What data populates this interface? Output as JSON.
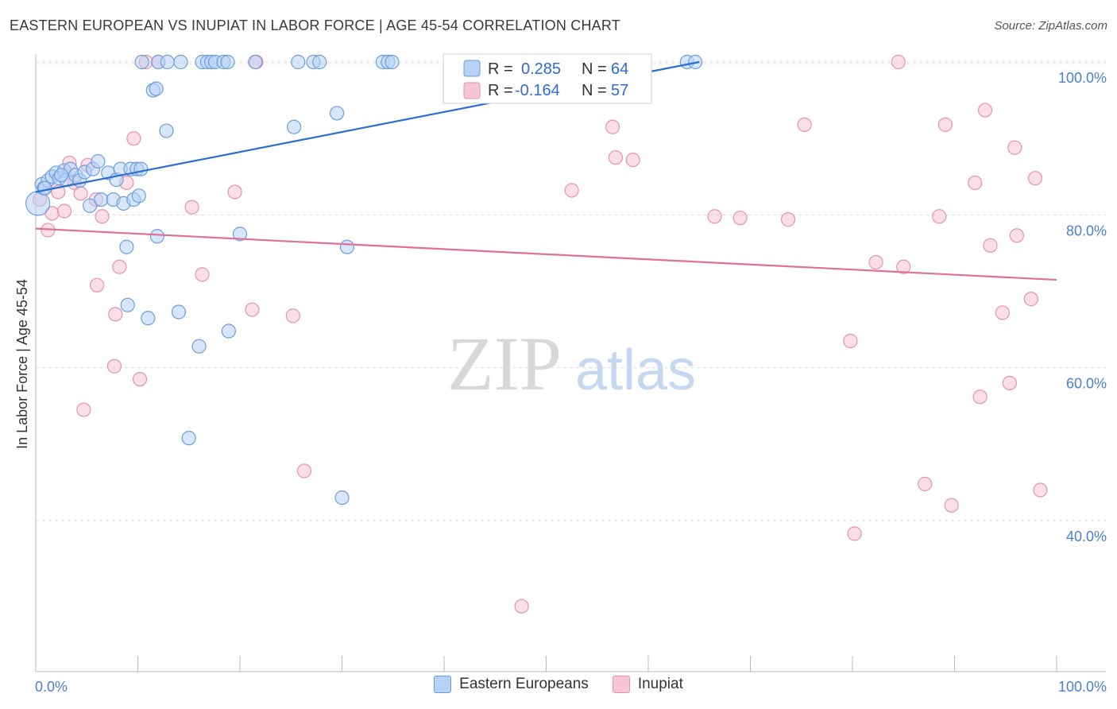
{
  "title": "EASTERN EUROPEAN VS INUPIAT IN LABOR FORCE | AGE 45-54 CORRELATION CHART",
  "source": "Source: ZipAtlas.com",
  "watermark": {
    "zip": "ZIP",
    "atlas": "atlas"
  },
  "colors": {
    "blue_fill": "#b8d2f5",
    "blue_stroke": "#6d9edc",
    "blue_line": "#2a6fd1",
    "pink_fill": "#f8c5d6",
    "pink_stroke": "#e891ad",
    "pink_line": "#e07099",
    "value_text": "#2f6bd0"
  },
  "legend": {
    "rows": [
      {
        "r_label": "R = ",
        "r_value": "0.285",
        "n_label": "N = ",
        "n_value": "64",
        "series": "blue"
      },
      {
        "r_label": "R = ",
        "r_value": "-0.164",
        "n_label": "N = ",
        "n_value": "57",
        "series": "pink"
      }
    ]
  },
  "bottom_legend": [
    {
      "label": "Eastern Europeans",
      "series": "blue"
    },
    {
      "label": "Inupiat",
      "series": "pink"
    }
  ],
  "chart_data": {
    "type": "scatter",
    "ylabel": "In Labor Force | Age 45-54",
    "xlabel": "",
    "xlim": [
      0,
      100
    ],
    "ylim": [
      20,
      102
    ],
    "x_tick_labels": {
      "left": "0.0%",
      "right": "100.0%"
    },
    "y_ticks": [
      {
        "value": 100,
        "label": "100.0%"
      },
      {
        "value": 80,
        "label": "80.0%"
      },
      {
        "value": 60,
        "label": "60.0%"
      },
      {
        "value": 40,
        "label": "40.0%"
      }
    ],
    "series": [
      {
        "name": "Eastern Europeans",
        "color": "blue",
        "trend": {
          "x": [
            0,
            65
          ],
          "y": [
            83.0,
            100.0
          ]
        },
        "points": [
          [
            0.2,
            81.5
          ],
          [
            0.6,
            84.0
          ],
          [
            0.8,
            83.5
          ],
          [
            1.2,
            84.5
          ],
          [
            1.6,
            85.0
          ],
          [
            2.0,
            85.5
          ],
          [
            2.3,
            84.8
          ],
          [
            2.8,
            85.8
          ],
          [
            3.0,
            84.6
          ],
          [
            3.4,
            86.0
          ],
          [
            3.9,
            85.2
          ],
          [
            4.3,
            84.5
          ],
          [
            4.8,
            85.6
          ],
          [
            5.3,
            81.2
          ],
          [
            5.6,
            86.0
          ],
          [
            6.1,
            87.0
          ],
          [
            6.4,
            82.0
          ],
          [
            7.1,
            85.5
          ],
          [
            7.6,
            82.0
          ],
          [
            7.9,
            84.6
          ],
          [
            8.3,
            86.0
          ],
          [
            8.6,
            81.5
          ],
          [
            8.9,
            75.8
          ],
          [
            9.0,
            68.2
          ],
          [
            9.3,
            86.0
          ],
          [
            9.6,
            82.0
          ],
          [
            9.9,
            86.0
          ],
          [
            10.1,
            82.5
          ],
          [
            10.3,
            86.0
          ],
          [
            10.4,
            100.0
          ],
          [
            11.5,
            96.3
          ],
          [
            11.8,
            96.5
          ],
          [
            11.0,
            66.5
          ],
          [
            11.9,
            77.2
          ],
          [
            12.0,
            100.0
          ],
          [
            12.8,
            91.0
          ],
          [
            12.9,
            100.0
          ],
          [
            14.0,
            67.3
          ],
          [
            14.2,
            100.0
          ],
          [
            15.0,
            50.8
          ],
          [
            16.0,
            62.8
          ],
          [
            16.3,
            100.0
          ],
          [
            16.8,
            100.0
          ],
          [
            17.2,
            100.0
          ],
          [
            17.6,
            100.0
          ],
          [
            18.4,
            100.0
          ],
          [
            18.8,
            100.0
          ],
          [
            18.9,
            64.8
          ],
          [
            20.0,
            77.5
          ],
          [
            21.5,
            100.0
          ],
          [
            25.3,
            91.5
          ],
          [
            25.7,
            100.0
          ],
          [
            27.2,
            100.0
          ],
          [
            27.8,
            100.0
          ],
          [
            29.5,
            93.3
          ],
          [
            30.0,
            43.0
          ],
          [
            30.5,
            75.8
          ],
          [
            34.0,
            100.0
          ],
          [
            34.5,
            100.0
          ],
          [
            34.9,
            100.0
          ],
          [
            63.8,
            100.0
          ],
          [
            64.6,
            100.0
          ],
          [
            0.9,
            83.5
          ],
          [
            2.5,
            85.2
          ]
        ]
      },
      {
        "name": "Inupiat",
        "color": "pink",
        "trend": {
          "x": [
            0,
            100
          ],
          "y": [
            78.2,
            71.5
          ]
        },
        "points": [
          [
            0.4,
            82.0
          ],
          [
            1.2,
            78.0
          ],
          [
            1.6,
            80.2
          ],
          [
            2.2,
            83.0
          ],
          [
            2.8,
            80.5
          ],
          [
            3.3,
            86.8
          ],
          [
            3.8,
            84.2
          ],
          [
            4.4,
            82.8
          ],
          [
            4.7,
            54.5
          ],
          [
            5.1,
            86.5
          ],
          [
            5.9,
            82.0
          ],
          [
            6.0,
            70.8
          ],
          [
            6.5,
            79.8
          ],
          [
            7.7,
            60.2
          ],
          [
            7.8,
            67.0
          ],
          [
            8.2,
            73.2
          ],
          [
            8.9,
            84.2
          ],
          [
            9.6,
            90.0
          ],
          [
            10.2,
            58.5
          ],
          [
            10.8,
            100.0
          ],
          [
            12.0,
            100.0
          ],
          [
            15.3,
            81.0
          ],
          [
            16.3,
            72.2
          ],
          [
            19.5,
            83.0
          ],
          [
            21.2,
            67.6
          ],
          [
            21.6,
            100.0
          ],
          [
            25.2,
            66.8
          ],
          [
            26.3,
            46.5
          ],
          [
            47.6,
            28.8
          ],
          [
            52.5,
            83.2
          ],
          [
            56.5,
            91.5
          ],
          [
            56.8,
            87.5
          ],
          [
            58.5,
            87.2
          ],
          [
            66.5,
            79.8
          ],
          [
            69.0,
            79.6
          ],
          [
            75.3,
            91.8
          ],
          [
            73.7,
            79.4
          ],
          [
            79.8,
            63.5
          ],
          [
            80.2,
            38.3
          ],
          [
            82.3,
            73.8
          ],
          [
            84.5,
            100.0
          ],
          [
            85.0,
            73.2
          ],
          [
            87.1,
            44.8
          ],
          [
            88.5,
            79.8
          ],
          [
            89.1,
            91.8
          ],
          [
            89.7,
            42.0
          ],
          [
            92.0,
            84.2
          ],
          [
            92.5,
            56.2
          ],
          [
            93.0,
            93.7
          ],
          [
            93.5,
            76.0
          ],
          [
            94.7,
            67.2
          ],
          [
            95.4,
            58.0
          ],
          [
            95.9,
            88.8
          ],
          [
            96.1,
            77.3
          ],
          [
            97.5,
            69.0
          ],
          [
            98.4,
            44.0
          ],
          [
            97.9,
            84.8
          ]
        ]
      }
    ]
  }
}
